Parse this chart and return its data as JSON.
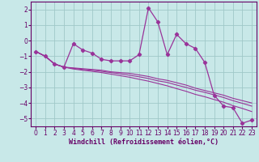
{
  "xlabel": "Windchill (Refroidissement éolien,°C)",
  "x": [
    0,
    1,
    2,
    3,
    4,
    5,
    6,
    7,
    8,
    9,
    10,
    11,
    12,
    13,
    14,
    15,
    16,
    17,
    18,
    19,
    20,
    21,
    22,
    23
  ],
  "line1": [
    -0.7,
    -1.0,
    -1.5,
    -1.7,
    -0.2,
    -0.6,
    -0.8,
    -1.2,
    -1.3,
    -1.3,
    -1.3,
    -0.9,
    2.1,
    1.2,
    -0.9,
    0.4,
    -0.2,
    -0.5,
    -1.4,
    -3.5,
    -4.2,
    -4.3,
    -5.3,
    -5.1
  ],
  "line2": [
    -0.7,
    -1.0,
    -1.5,
    -1.7,
    -1.75,
    -1.8,
    -1.85,
    -1.9,
    -2.0,
    -2.05,
    -2.1,
    -2.2,
    -2.3,
    -2.45,
    -2.55,
    -2.7,
    -2.85,
    -3.05,
    -3.2,
    -3.35,
    -3.5,
    -3.7,
    -3.85,
    -4.0
  ],
  "line3": [
    -0.7,
    -1.0,
    -1.5,
    -1.7,
    -1.78,
    -1.85,
    -1.9,
    -1.97,
    -2.05,
    -2.13,
    -2.22,
    -2.32,
    -2.43,
    -2.58,
    -2.68,
    -2.85,
    -3.0,
    -3.18,
    -3.32,
    -3.48,
    -3.65,
    -3.85,
    -4.02,
    -4.2
  ],
  "line4": [
    -0.7,
    -1.0,
    -1.5,
    -1.7,
    -1.82,
    -1.9,
    -1.97,
    -2.05,
    -2.15,
    -2.25,
    -2.35,
    -2.48,
    -2.6,
    -2.75,
    -2.9,
    -3.08,
    -3.25,
    -3.45,
    -3.6,
    -3.78,
    -3.95,
    -4.17,
    -4.35,
    -4.55
  ],
  "line_color": "#993399",
  "bg_color": "#c8e8e8",
  "grid_color": "#a0c8c8",
  "ylim": [
    -5.5,
    2.5
  ],
  "xlim": [
    -0.5,
    23.5
  ],
  "yticks": [
    -5,
    -4,
    -3,
    -2,
    -1,
    0,
    1,
    2
  ],
  "xticks": [
    0,
    1,
    2,
    3,
    4,
    5,
    6,
    7,
    8,
    9,
    10,
    11,
    12,
    13,
    14,
    15,
    16,
    17,
    18,
    19,
    20,
    21,
    22,
    23
  ],
  "tick_color": "#660066",
  "spine_color": "#660066"
}
